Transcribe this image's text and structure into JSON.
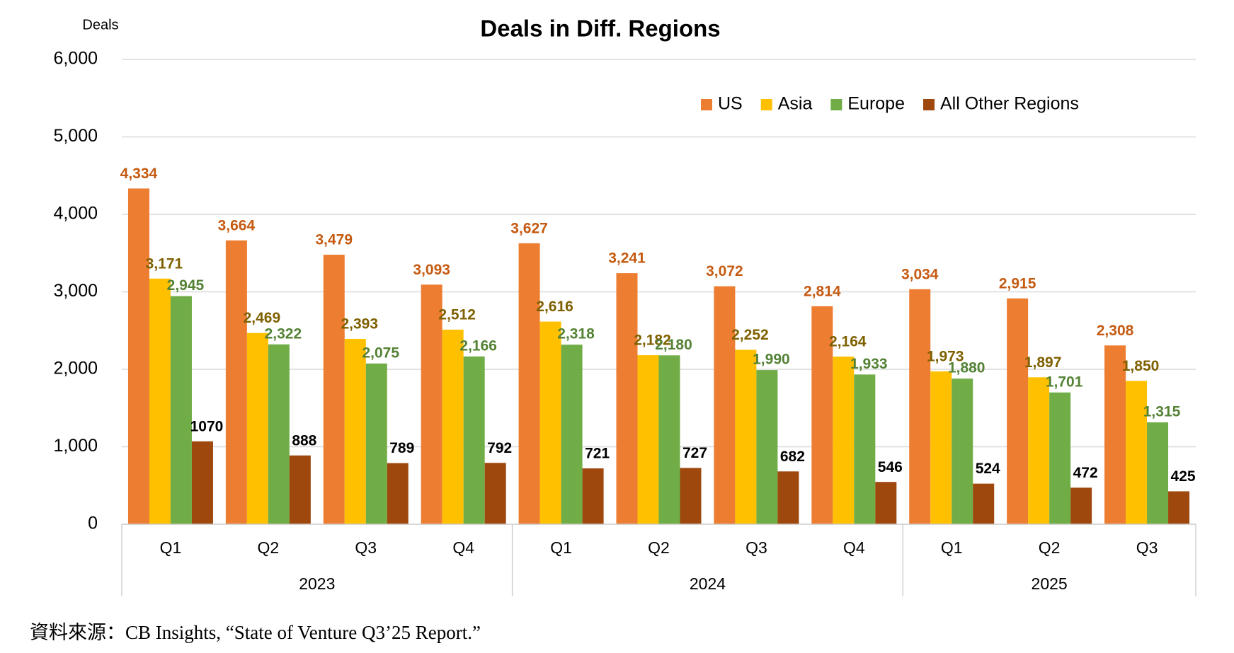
{
  "chart_data": {
    "type": "bar",
    "title": "Deals in Diff. Regions",
    "y_label": "Deals",
    "categories": [
      "Q1",
      "Q2",
      "Q3",
      "Q4",
      "Q1",
      "Q2",
      "Q3",
      "Q4",
      "Q1",
      "Q2",
      "Q3"
    ],
    "groups": [
      "2023",
      "2024",
      "2025"
    ],
    "series": [
      {
        "name": "US",
        "color": "#ED7D31",
        "label_color": "#C55A11",
        "values": [
          4334,
          3664,
          3479,
          3093,
          3627,
          3241,
          3072,
          2814,
          3034,
          2915,
          2308
        ],
        "value_labels": [
          "4,334",
          "3,664",
          "3,479",
          "3,093",
          "3,627",
          "3,241",
          "3,072",
          "2,814",
          "3,034",
          "2,915",
          "2,308"
        ]
      },
      {
        "name": "Asia",
        "color": "#FFC000",
        "label_color": "#7F6000",
        "values": [
          3171,
          2469,
          2393,
          2512,
          2616,
          2182,
          2252,
          2164,
          1973,
          1897,
          1850
        ],
        "value_labels": [
          "3,171",
          "2,469",
          "2,393",
          "2,512",
          "2,616",
          "2,182",
          "2,252",
          "2,164",
          "1,973",
          "1,897",
          "1,850"
        ]
      },
      {
        "name": "Europe",
        "color": "#70AD47",
        "label_color": "#548235",
        "values": [
          2945,
          2322,
          2075,
          2166,
          2318,
          2180,
          1990,
          1933,
          1880,
          1701,
          1315
        ],
        "value_labels": [
          "2,945",
          "2,322",
          "2,075",
          "2,166",
          "2,318",
          "2,180",
          "1,990",
          "1,933",
          "1,880",
          "1,701",
          "1,315"
        ]
      },
      {
        "name": "All Other Regions",
        "color": "#9E480E",
        "label_color": "#000000",
        "values": [
          1070,
          888,
          789,
          792,
          721,
          727,
          682,
          546,
          524,
          472,
          425
        ]
      }
    ],
    "ylim": [
      0,
      6000
    ],
    "yticks": [
      0,
      {
        "value": 1000,
        "label": "1,000"
      },
      {
        "value": 2000,
        "label": "2,000"
      },
      {
        "value": 3000,
        "label": "3,000"
      },
      {
        "value": 4000,
        "label": "4,000"
      },
      {
        "value": 5000,
        "label": "5,000"
      },
      {
        "value": 6000,
        "label": "6,000"
      }
    ],
    "grid": true,
    "legend": "top-right",
    "source": "資料來源：CB Insights, “State of Venture Q3’25 Report.”"
  }
}
